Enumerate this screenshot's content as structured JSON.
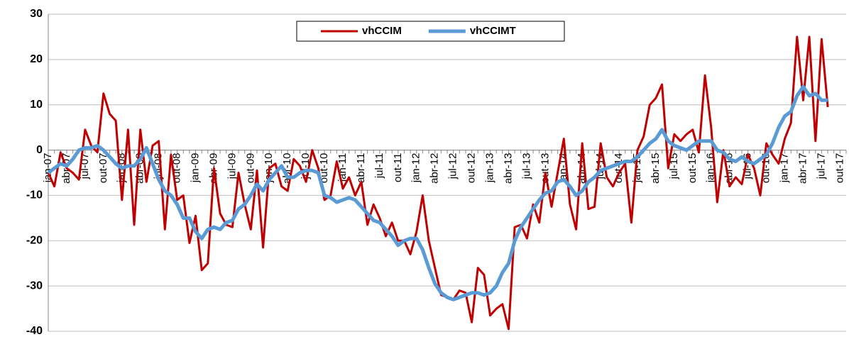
{
  "chart_data": {
    "type": "line",
    "categories": [
      "jan-07",
      null,
      null,
      "abr-07",
      null,
      null,
      "jul-07",
      null,
      null,
      "out-07",
      null,
      null,
      "jan-08",
      null,
      null,
      "abr-08",
      null,
      null,
      "jul-08",
      null,
      null,
      "out-08",
      null,
      null,
      "jan-09",
      null,
      null,
      "abr-09",
      null,
      null,
      "jul-09",
      null,
      null,
      "out-09",
      null,
      null,
      "jan-10",
      null,
      null,
      "abr-10",
      null,
      null,
      "jul-10",
      null,
      null,
      "out-10",
      null,
      null,
      "jan-11",
      null,
      null,
      "abr-11",
      null,
      null,
      "jul-11",
      null,
      null,
      "out-11",
      null,
      null,
      "jan-12",
      null,
      null,
      "abr-12",
      null,
      null,
      "jul-12",
      null,
      null,
      "out-12",
      null,
      null,
      "jan-13",
      null,
      null,
      "abr-13",
      null,
      null,
      "jul-13",
      null,
      null,
      "out-13",
      null,
      null,
      "jan-14",
      null,
      null,
      "abr-14",
      null,
      null,
      "jul-14",
      null,
      null,
      "out-14",
      null,
      null,
      "jan-15",
      null,
      null,
      "abr-15",
      null,
      null,
      "jul-15",
      null,
      null,
      "out-15",
      null,
      null,
      "jan-16",
      null,
      null,
      "abr-16",
      null,
      null,
      "jul-16",
      null,
      null,
      "out-16",
      null,
      null,
      "jan-17",
      null,
      null,
      "abr-17",
      null,
      null,
      "jul-17",
      null,
      null,
      "out-17",
      null,
      null
    ],
    "series": [
      {
        "name": "vhCCIM",
        "color": "#c00000",
        "values": [
          -5,
          -8,
          -0.5,
          -4,
          -5,
          -6.5,
          4.5,
          1,
          -0.5,
          12.5,
          8,
          6.5,
          -11,
          4.5,
          -16.5,
          4.5,
          -7,
          1,
          2,
          -17.5,
          -1,
          -11,
          -10,
          -20.5,
          -14.5,
          -26.5,
          -25,
          -4,
          -14,
          -16.5,
          -17,
          -5,
          -12,
          -17.5,
          -4.5,
          -21.5,
          -4,
          -3,
          -8,
          -9,
          -2,
          -3.5,
          -7,
          0,
          -4,
          -11,
          -10,
          -2.5,
          -8.5,
          -6,
          -10,
          -7,
          -16.5,
          -12,
          -15,
          -19,
          -16,
          -20,
          -20,
          -23,
          -18,
          -10,
          -20,
          -26,
          -32,
          -32.5,
          -33,
          -31,
          -31.5,
          -38,
          -26,
          -27.5,
          -36.5,
          -35,
          -34,
          -39.5,
          -17,
          -16.5,
          -19.5,
          -12,
          -16,
          -5,
          -12.5,
          -5,
          2.5,
          -12,
          -17.5,
          1.5,
          -13,
          -12.5,
          1.5,
          -6,
          -8,
          -5,
          -3,
          -16,
          0,
          3,
          10,
          11.5,
          14.5,
          -4,
          3.5,
          2,
          3.5,
          4.5,
          -0.5,
          16.5,
          5,
          -11.5,
          0,
          -8,
          -6,
          -7.5,
          -1,
          -4,
          -10,
          1.5,
          -1,
          -3,
          2.5,
          6,
          25,
          11,
          25,
          2,
          24.5,
          9.5,
          null,
          null,
          null,
          null
        ]
      },
      {
        "name": "vhCCIMT",
        "color": "#5b9bd5",
        "values": [
          -5,
          -4,
          -3,
          -3.5,
          -2,
          0,
          0.5,
          0.5,
          1,
          0,
          -1.5,
          -3,
          -4,
          -3.5,
          -3.5,
          -2,
          0.5,
          -3,
          -6.5,
          -9,
          -10,
          -12,
          -15,
          -15,
          -18,
          -19.5,
          -17.5,
          -17,
          -17.5,
          -16,
          -15.5,
          -13,
          -12,
          -10,
          -7.5,
          -9,
          -6.5,
          -5,
          -3.5,
          -6,
          -6,
          -5,
          -4.5,
          -4.5,
          -5,
          -10,
          -10.5,
          -11.5,
          -11,
          -10.5,
          -11,
          -12.5,
          -14,
          -15.5,
          -16,
          -17.5,
          -19,
          -21,
          -20,
          -19.5,
          -19.5,
          -22,
          -26,
          -29.5,
          -31.5,
          -32.5,
          -33,
          -32.5,
          -32,
          -31.5,
          -31.5,
          -32,
          -31.5,
          -30,
          -27,
          -25,
          -20,
          -17,
          -15,
          -13,
          -11,
          -9.5,
          -9,
          -7,
          -6.5,
          -8,
          -10,
          -9,
          -7,
          -6,
          -4.5,
          -4,
          -3.5,
          -3,
          -2.5,
          -2.5,
          -1.5,
          0,
          1.5,
          2.5,
          4.5,
          2,
          1,
          0.5,
          0,
          1,
          2,
          2,
          2,
          0,
          -0.5,
          -2,
          -2.5,
          -1.5,
          -2.5,
          -3,
          -2,
          -1,
          1.5,
          5,
          7.5,
          8.5,
          12,
          14,
          12,
          12.5,
          11,
          11,
          null,
          null,
          null,
          null
        ]
      }
    ],
    "ylim": [
      -40,
      30
    ],
    "yticks": [
      -40,
      -30,
      -20,
      -10,
      0,
      10,
      20,
      30
    ],
    "grid": true
  }
}
